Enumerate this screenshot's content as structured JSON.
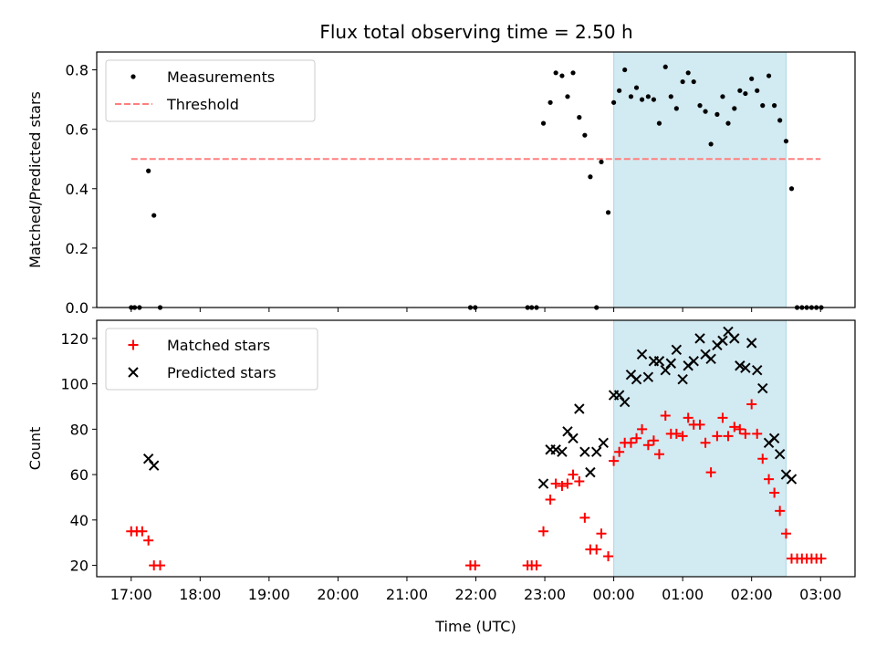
{
  "title": "Flux total observing time = 2.50 h",
  "colors": {
    "shade": "#add8e6",
    "measurement": "#000000",
    "threshold": "#ff7f7f",
    "matched": "#ff0000",
    "predicted": "#000000"
  },
  "chart_data": [
    {
      "type": "scatter",
      "panel": "top",
      "xlabel": "",
      "ylabel": "Matched/Predicted stars",
      "xlim": [
        16.5,
        27.5
      ],
      "ylim": [
        0,
        0.86
      ],
      "yticks": [
        0.0,
        0.2,
        0.4,
        0.6,
        0.8
      ],
      "ytick_labels": [
        "0.0",
        "0.2",
        "0.4",
        "0.6",
        "0.8"
      ],
      "shaded_span": [
        24.0,
        26.5
      ],
      "legend": {
        "position": "top-left",
        "entries": [
          "Measurements",
          "Threshold"
        ]
      },
      "threshold": {
        "name": "Threshold",
        "value": 0.5,
        "x_range": [
          17.0,
          27.0
        ]
      },
      "series": [
        {
          "name": "Measurements",
          "points": [
            [
              17.0,
              0.0
            ],
            [
              17.05,
              0.0
            ],
            [
              17.12,
              0.0
            ],
            [
              17.25,
              0.46
            ],
            [
              17.33,
              0.31
            ],
            [
              17.42,
              0.0
            ],
            [
              21.92,
              0.0
            ],
            [
              21.99,
              0.0
            ],
            [
              22.75,
              0.0
            ],
            [
              22.81,
              0.0
            ],
            [
              22.88,
              0.0
            ],
            [
              22.98,
              0.62
            ],
            [
              23.08,
              0.69
            ],
            [
              23.16,
              0.79
            ],
            [
              23.25,
              0.78
            ],
            [
              23.33,
              0.71
            ],
            [
              23.41,
              0.79
            ],
            [
              23.5,
              0.64
            ],
            [
              23.58,
              0.58
            ],
            [
              23.66,
              0.44
            ],
            [
              23.75,
              0.0
            ],
            [
              23.82,
              0.49
            ],
            [
              23.92,
              0.32
            ],
            [
              24.0,
              0.69
            ],
            [
              24.08,
              0.73
            ],
            [
              24.16,
              0.8
            ],
            [
              24.25,
              0.71
            ],
            [
              24.33,
              0.74
            ],
            [
              24.41,
              0.7
            ],
            [
              24.5,
              0.71
            ],
            [
              24.58,
              0.7
            ],
            [
              24.66,
              0.62
            ],
            [
              24.75,
              0.81
            ],
            [
              24.83,
              0.71
            ],
            [
              24.91,
              0.67
            ],
            [
              25.0,
              0.76
            ],
            [
              25.08,
              0.79
            ],
            [
              25.16,
              0.76
            ],
            [
              25.25,
              0.68
            ],
            [
              25.33,
              0.66
            ],
            [
              25.41,
              0.55
            ],
            [
              25.5,
              0.65
            ],
            [
              25.58,
              0.71
            ],
            [
              25.66,
              0.62
            ],
            [
              25.75,
              0.67
            ],
            [
              25.83,
              0.73
            ],
            [
              25.91,
              0.72
            ],
            [
              26.0,
              0.77
            ],
            [
              26.08,
              0.73
            ],
            [
              26.16,
              0.68
            ],
            [
              26.25,
              0.78
            ],
            [
              26.33,
              0.68
            ],
            [
              26.41,
              0.63
            ],
            [
              26.5,
              0.56
            ],
            [
              26.58,
              0.4
            ],
            [
              26.66,
              0.0
            ],
            [
              26.73,
              0.0
            ],
            [
              26.8,
              0.0
            ],
            [
              26.87,
              0.0
            ],
            [
              26.94,
              0.0
            ],
            [
              27.01,
              0.0
            ]
          ]
        }
      ]
    },
    {
      "type": "scatter",
      "panel": "bottom",
      "xlabel": "Time (UTC)",
      "ylabel": "Count",
      "xlim": [
        16.5,
        27.5
      ],
      "ylim": [
        15,
        128
      ],
      "yticks": [
        20,
        40,
        60,
        80,
        100,
        120
      ],
      "ytick_labels": [
        "20",
        "40",
        "60",
        "80",
        "100",
        "120"
      ],
      "xticks": [
        17,
        18,
        19,
        20,
        21,
        22,
        23,
        24,
        25,
        26,
        27
      ],
      "xtick_labels": [
        "17:00",
        "18:00",
        "19:00",
        "20:00",
        "21:00",
        "22:00",
        "23:00",
        "00:00",
        "01:00",
        "02:00",
        "03:00"
      ],
      "shaded_span": [
        24.0,
        26.5
      ],
      "legend": {
        "position": "top-left",
        "entries": [
          "Matched stars",
          "Predicted stars"
        ]
      },
      "series": [
        {
          "name": "Matched stars",
          "marker": "plus",
          "points": [
            [
              17.0,
              35
            ],
            [
              17.08,
              35
            ],
            [
              17.16,
              35
            ],
            [
              17.25,
              31
            ],
            [
              17.33,
              20
            ],
            [
              17.42,
              20
            ],
            [
              21.92,
              20
            ],
            [
              21.99,
              20
            ],
            [
              22.75,
              20
            ],
            [
              22.81,
              20
            ],
            [
              22.88,
              20
            ],
            [
              22.98,
              35
            ],
            [
              23.08,
              49
            ],
            [
              23.16,
              56
            ],
            [
              23.25,
              55
            ],
            [
              23.33,
              56
            ],
            [
              23.41,
              60
            ],
            [
              23.5,
              57
            ],
            [
              23.58,
              41
            ],
            [
              23.66,
              27
            ],
            [
              23.75,
              27
            ],
            [
              23.82,
              34
            ],
            [
              23.92,
              24
            ],
            [
              24.0,
              66
            ],
            [
              24.08,
              70
            ],
            [
              24.16,
              74
            ],
            [
              24.25,
              74
            ],
            [
              24.33,
              76
            ],
            [
              24.41,
              80
            ],
            [
              24.5,
              73
            ],
            [
              24.58,
              75
            ],
            [
              24.66,
              69
            ],
            [
              24.75,
              86
            ],
            [
              24.83,
              78
            ],
            [
              24.91,
              78
            ],
            [
              25.0,
              77
            ],
            [
              25.08,
              85
            ],
            [
              25.16,
              82
            ],
            [
              25.25,
              82
            ],
            [
              25.33,
              74
            ],
            [
              25.41,
              61
            ],
            [
              25.5,
              77
            ],
            [
              25.58,
              85
            ],
            [
              25.66,
              77
            ],
            [
              25.75,
              81
            ],
            [
              25.83,
              80
            ],
            [
              25.91,
              78
            ],
            [
              26.0,
              91
            ],
            [
              26.08,
              78
            ],
            [
              26.16,
              67
            ],
            [
              26.25,
              58
            ],
            [
              26.33,
              52
            ],
            [
              26.41,
              44
            ],
            [
              26.5,
              34
            ],
            [
              26.58,
              23
            ],
            [
              26.66,
              23
            ],
            [
              26.73,
              23
            ],
            [
              26.8,
              23
            ],
            [
              26.87,
              23
            ],
            [
              26.94,
              23
            ],
            [
              27.01,
              23
            ]
          ]
        },
        {
          "name": "Predicted stars",
          "marker": "x",
          "points": [
            [
              17.25,
              67
            ],
            [
              17.33,
              64
            ],
            [
              22.98,
              56
            ],
            [
              23.08,
              71
            ],
            [
              23.16,
              71
            ],
            [
              23.25,
              70
            ],
            [
              23.33,
              79
            ],
            [
              23.41,
              76
            ],
            [
              23.5,
              89
            ],
            [
              23.58,
              70
            ],
            [
              23.66,
              61
            ],
            [
              23.75,
              70
            ],
            [
              23.85,
              74
            ],
            [
              24.0,
              95
            ],
            [
              24.08,
              95
            ],
            [
              24.16,
              92
            ],
            [
              24.25,
              104
            ],
            [
              24.33,
              102
            ],
            [
              24.41,
              113
            ],
            [
              24.5,
              103
            ],
            [
              24.58,
              110
            ],
            [
              24.66,
              110
            ],
            [
              24.75,
              106
            ],
            [
              24.83,
              109
            ],
            [
              24.91,
              115
            ],
            [
              25.0,
              102
            ],
            [
              25.08,
              108
            ],
            [
              25.16,
              110
            ],
            [
              25.25,
              120
            ],
            [
              25.33,
              113
            ],
            [
              25.41,
              111
            ],
            [
              25.5,
              117
            ],
            [
              25.58,
              119
            ],
            [
              25.66,
              123
            ],
            [
              25.75,
              120
            ],
            [
              25.83,
              108
            ],
            [
              25.91,
              107
            ],
            [
              26.0,
              118
            ],
            [
              26.08,
              106
            ],
            [
              26.16,
              98
            ],
            [
              26.25,
              74
            ],
            [
              26.33,
              76
            ],
            [
              26.41,
              69
            ],
            [
              26.5,
              60
            ],
            [
              26.58,
              58
            ]
          ]
        }
      ]
    }
  ]
}
